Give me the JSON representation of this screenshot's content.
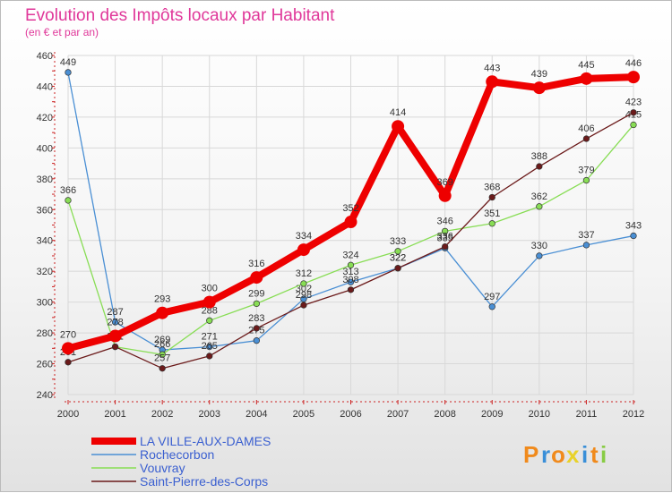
{
  "chart_data": {
    "type": "line",
    "title": "Evolution des Impôts locaux par Habitant",
    "subtitle": "(en € et par an)",
    "xlabel": "",
    "ylabel": "",
    "ylim": [
      240,
      460
    ],
    "yticks": [
      240,
      260,
      280,
      300,
      320,
      340,
      360,
      380,
      400,
      420,
      440,
      460
    ],
    "categories": [
      "2000",
      "2001",
      "2002",
      "2003",
      "2004",
      "2005",
      "2006",
      "2007",
      "2008",
      "2009",
      "2010",
      "2011",
      "2012"
    ],
    "series": [
      {
        "name": "LA VILLE-AUX-DAMES",
        "color": "#ee0000",
        "values": [
          270,
          278,
          293,
          300,
          316,
          334,
          352,
          414,
          369,
          443,
          439,
          445,
          446
        ]
      },
      {
        "name": "Rochecorbon",
        "color": "#4a8fd4",
        "values": [
          449,
          287,
          269,
          271,
          275,
          302,
          313,
          322,
          335,
          297,
          330,
          337,
          343
        ]
      },
      {
        "name": "Vouvray",
        "color": "#88dd55",
        "values": [
          366,
          271,
          266,
          288,
          299,
          312,
          324,
          333,
          346,
          351,
          362,
          379,
          415
        ]
      },
      {
        "name": "Saint-Pierre-des-Corps",
        "color": "#6b1a1a",
        "values": [
          261,
          271,
          257,
          265,
          283,
          298,
          308,
          322,
          336,
          368,
          388,
          406,
          423
        ]
      }
    ],
    "legend_position": "bottom-left",
    "grid": true
  },
  "logo": {
    "text": "Proxiti",
    "letters": [
      "P",
      "r",
      "o",
      "x",
      "i",
      "t",
      "i"
    ]
  }
}
